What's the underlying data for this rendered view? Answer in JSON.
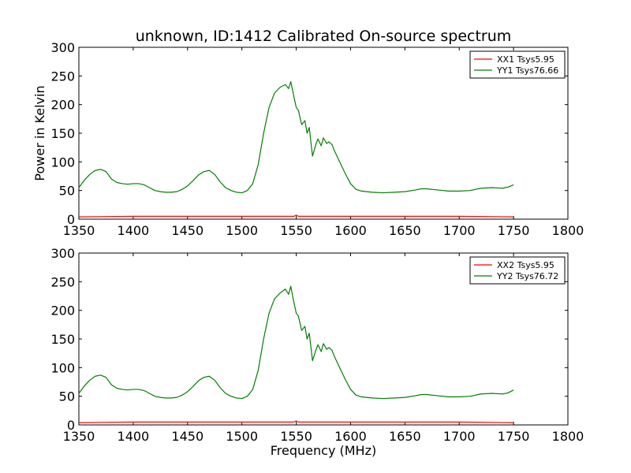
{
  "chart_data": [
    {
      "type": "line",
      "title": "unknown, ID:1412 Calibrated On-source spectrum",
      "xlabel": "",
      "ylabel": "Power in Kelvin",
      "xlim": [
        1350,
        1800
      ],
      "ylim": [
        0,
        300
      ],
      "xticks": [
        1350,
        1400,
        1450,
        1500,
        1550,
        1600,
        1650,
        1700,
        1750,
        1800
      ],
      "yticks": [
        0,
        50,
        100,
        150,
        200,
        250,
        300
      ],
      "legend_position": "top-right",
      "series": [
        {
          "name": "XX1 Tsys5.95",
          "color": "#ff0000",
          "x": [
            1350,
            1400,
            1500,
            1548,
            1550,
            1552,
            1600,
            1700,
            1750
          ],
          "y": [
            4,
            5,
            5,
            5,
            7,
            5,
            5,
            5,
            4
          ]
        },
        {
          "name": "YY1 Tsys76.66",
          "color": "#008000",
          "x": [
            1350,
            1355,
            1360,
            1365,
            1370,
            1375,
            1380,
            1385,
            1390,
            1395,
            1400,
            1405,
            1410,
            1415,
            1420,
            1425,
            1430,
            1435,
            1440,
            1445,
            1450,
            1455,
            1460,
            1465,
            1470,
            1475,
            1480,
            1485,
            1490,
            1495,
            1500,
            1505,
            1510,
            1515,
            1520,
            1525,
            1530,
            1535,
            1540,
            1543,
            1545,
            1547,
            1550,
            1552,
            1555,
            1558,
            1560,
            1562,
            1565,
            1568,
            1570,
            1573,
            1575,
            1578,
            1580,
            1583,
            1585,
            1590,
            1595,
            1600,
            1605,
            1610,
            1620,
            1630,
            1640,
            1650,
            1660,
            1665,
            1670,
            1680,
            1690,
            1700,
            1710,
            1720,
            1730,
            1740,
            1745,
            1750
          ],
          "y": [
            55,
            68,
            78,
            85,
            87,
            83,
            70,
            64,
            62,
            61,
            62,
            62,
            60,
            55,
            50,
            48,
            47,
            47,
            48,
            52,
            58,
            67,
            77,
            83,
            85,
            78,
            65,
            55,
            50,
            47,
            46,
            50,
            62,
            95,
            150,
            195,
            220,
            230,
            235,
            228,
            240,
            222,
            195,
            190,
            165,
            172,
            150,
            160,
            110,
            130,
            140,
            128,
            142,
            132,
            135,
            130,
            120,
            100,
            80,
            62,
            52,
            49,
            47,
            46,
            47,
            48,
            51,
            53,
            53,
            51,
            49,
            49,
            50,
            54,
            55,
            54,
            56,
            60
          ]
        }
      ]
    },
    {
      "type": "line",
      "title": "",
      "xlabel": "Frequency (MHz)",
      "ylabel": "",
      "xlim": [
        1350,
        1800
      ],
      "ylim": [
        0,
        300
      ],
      "xticks": [
        1350,
        1400,
        1450,
        1500,
        1550,
        1600,
        1650,
        1700,
        1750,
        1800
      ],
      "yticks": [
        0,
        50,
        100,
        150,
        200,
        250,
        300
      ],
      "legend_position": "top-right",
      "series": [
        {
          "name": "XX2 Tsys5.95",
          "color": "#ff0000",
          "x": [
            1350,
            1400,
            1500,
            1548,
            1550,
            1552,
            1600,
            1700,
            1750
          ],
          "y": [
            4,
            5,
            5,
            5,
            7,
            5,
            5,
            5,
            4
          ]
        },
        {
          "name": "YY2 Tsys76.72",
          "color": "#008000",
          "x": [
            1350,
            1355,
            1360,
            1365,
            1370,
            1375,
            1380,
            1385,
            1390,
            1395,
            1400,
            1405,
            1410,
            1415,
            1420,
            1425,
            1430,
            1435,
            1440,
            1445,
            1450,
            1455,
            1460,
            1465,
            1470,
            1475,
            1480,
            1485,
            1490,
            1495,
            1500,
            1505,
            1510,
            1515,
            1520,
            1525,
            1530,
            1535,
            1540,
            1543,
            1545,
            1547,
            1550,
            1552,
            1555,
            1558,
            1560,
            1562,
            1565,
            1568,
            1570,
            1573,
            1575,
            1578,
            1580,
            1583,
            1585,
            1590,
            1595,
            1600,
            1605,
            1610,
            1620,
            1630,
            1640,
            1650,
            1660,
            1665,
            1670,
            1680,
            1690,
            1700,
            1710,
            1720,
            1730,
            1740,
            1745,
            1750
          ],
          "y": [
            55,
            68,
            78,
            85,
            87,
            83,
            70,
            64,
            62,
            61,
            62,
            62,
            60,
            55,
            50,
            48,
            47,
            47,
            48,
            52,
            58,
            67,
            77,
            83,
            85,
            78,
            65,
            55,
            50,
            47,
            46,
            50,
            62,
            95,
            150,
            195,
            220,
            230,
            237,
            228,
            242,
            222,
            195,
            190,
            165,
            172,
            150,
            160,
            112,
            130,
            140,
            128,
            142,
            132,
            135,
            130,
            120,
            100,
            80,
            62,
            52,
            49,
            47,
            46,
            47,
            48,
            51,
            53,
            53,
            51,
            49,
            49,
            50,
            54,
            55,
            54,
            56,
            61
          ]
        }
      ]
    }
  ]
}
